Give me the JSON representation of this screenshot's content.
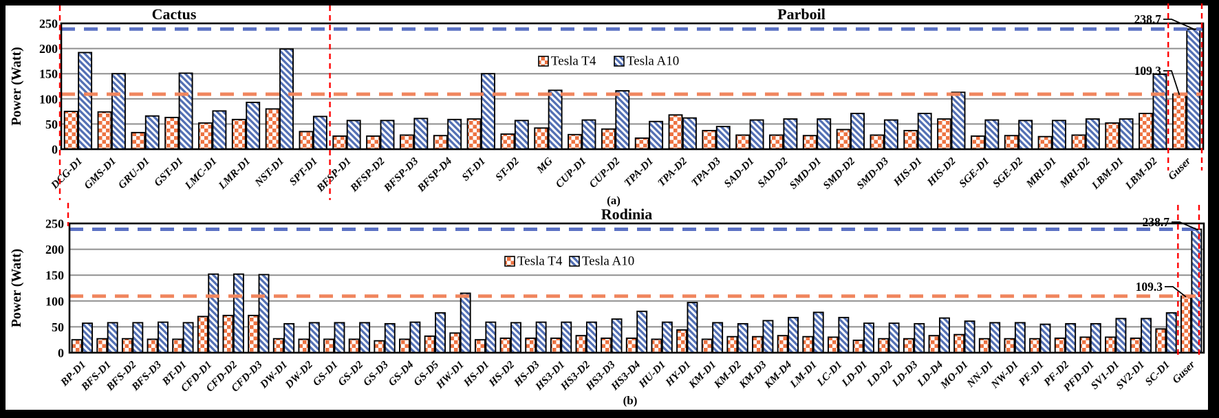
{
  "figure": {
    "ylabel": "Power (Watt)",
    "legend": [
      "Tesla T4",
      "Tesla A10"
    ],
    "colors": {
      "t4_fill": "#EE7342",
      "a10_fill": "#5370B4",
      "t4_ref_line": "#F0865E",
      "a10_ref_line": "#5C72C4",
      "divider_line": "#FF0000",
      "gridline": "#8F8F8F",
      "bar_outline": "#000000"
    }
  },
  "chart_data": [
    {
      "type": "bar",
      "panel_label": "(a)",
      "title_sections": [
        "Cactus",
        "Parboil"
      ],
      "ylabel": "Power (Watt)",
      "ylim": [
        0,
        250
      ],
      "yticks": [
        0,
        50,
        100,
        150,
        200,
        250
      ],
      "grid": true,
      "legend": [
        "Tesla T4",
        "Tesla A10"
      ],
      "legend_position": "inside-top-center",
      "categories": [
        "DCG-D1",
        "GMS-D1",
        "GRU-D1",
        "GST-D1",
        "LMC-D1",
        "LMR-D1",
        "NST-D1",
        "SPT-D1",
        "BFSP-D1",
        "BFSP-D2",
        "BFSP-D3",
        "BFSP-D4",
        "ST-D1",
        "ST-D2",
        "MG",
        "CUP-D1",
        "CUP-D2",
        "TPA-D1",
        "TPA-D2",
        "TPA-D3",
        "SAD-D1",
        "SAD-D2",
        "SMD-D1",
        "SMD-D2",
        "SMD-D3",
        "HIS-D1",
        "HIS-D2",
        "SGE-D1",
        "SGE-D2",
        "MRI-D1",
        "MRI-D2",
        "LBM-D1",
        "LBM-D2",
        "Guser"
      ],
      "series": [
        {
          "name": "Tesla T4",
          "values": [
            75,
            74,
            33,
            63,
            52,
            59,
            80,
            35,
            26,
            26,
            28,
            27,
            60,
            30,
            42,
            29,
            40,
            22,
            68,
            37,
            28,
            28,
            27,
            39,
            28,
            37,
            60,
            26,
            27,
            25,
            28,
            52,
            71,
            109.3
          ]
        },
        {
          "name": "Tesla A10",
          "values": [
            192,
            150,
            66,
            151,
            76,
            93,
            199,
            65,
            57,
            57,
            61,
            59,
            150,
            57,
            117,
            58,
            116,
            55,
            62,
            45,
            58,
            60,
            60,
            71,
            58,
            71,
            113,
            58,
            57,
            57,
            60,
            60,
            149,
            238.7
          ]
        }
      ],
      "ref_lines": [
        {
          "value": 238.7,
          "series": "Tesla A10"
        },
        {
          "value": 109.3,
          "series": "Tesla T4"
        }
      ],
      "annotations": [
        {
          "text": "238.7",
          "category": "Guser",
          "series": "Tesla A10"
        },
        {
          "text": "109.3",
          "category": "Guser",
          "series": "Tesla T4"
        }
      ],
      "suite_divider_boundaries": [
        0,
        8,
        33,
        34
      ]
    },
    {
      "type": "bar",
      "panel_label": "(b)",
      "title_sections": [
        "Rodinia"
      ],
      "ylabel": "Power (Watt)",
      "ylim": [
        0,
        250
      ],
      "yticks": [
        0,
        50,
        100,
        150,
        200,
        250
      ],
      "grid": true,
      "legend": [
        "Tesla T4",
        "Tesla A10"
      ],
      "legend_position": "inside-top-center",
      "categories": [
        "BP-D1",
        "BFS-D1",
        "BFS-D2",
        "BFS-D3",
        "BT-D1",
        "CFD-D1",
        "CFD-D2",
        "CFD-D3",
        "DW-D1",
        "DW-D2",
        "GS-D1",
        "GS-D2",
        "GS-D3",
        "GS-D4",
        "GS-D5",
        "HW-D1",
        "HS-D1",
        "HS-D2",
        "HS-D3",
        "HS3-D1",
        "HS3-D2",
        "HS3-D3",
        "HS3-D4",
        "HU-D1",
        "HY-D1",
        "KM-D1",
        "KM-D2",
        "KM-D3",
        "KM-D4",
        "LM-D1",
        "LC-D1",
        "LD-D1",
        "LD-D2",
        "LD-D3",
        "LD-D4",
        "MO-D1",
        "NN-D1",
        "NW-D1",
        "PF-D1",
        "PF-D2",
        "PFD-D1",
        "SV1-D1",
        "SV2-D1",
        "SC-D1",
        "Guser"
      ],
      "series": [
        {
          "name": "Tesla T4",
          "values": [
            25,
            27,
            27,
            26,
            26,
            70,
            72,
            72,
            27,
            26,
            26,
            26,
            23,
            26,
            32,
            38,
            25,
            28,
            28,
            28,
            33,
            28,
            28,
            26,
            44,
            26,
            31,
            31,
            33,
            31,
            30,
            24,
            27,
            27,
            33,
            35,
            27,
            27,
            27,
            28,
            30,
            30,
            28,
            46,
            109.3
          ]
        },
        {
          "name": "Tesla A10",
          "values": [
            57,
            58,
            58,
            59,
            58,
            152,
            152,
            151,
            56,
            58,
            58,
            58,
            56,
            59,
            77,
            115,
            59,
            58,
            59,
            59,
            59,
            65,
            80,
            59,
            97,
            58,
            56,
            62,
            68,
            78,
            68,
            57,
            57,
            56,
            67,
            61,
            58,
            58,
            55,
            56,
            56,
            66,
            66,
            77,
            238.7
          ]
        }
      ],
      "ref_lines": [
        {
          "value": 238.7,
          "series": "Tesla A10"
        },
        {
          "value": 109.3,
          "series": "Tesla T4"
        }
      ],
      "annotations": [
        {
          "text": "238.7",
          "category": "Guser",
          "series": "Tesla A10"
        },
        {
          "text": "109.3",
          "category": "Guser",
          "series": "Tesla T4"
        }
      ],
      "suite_divider_boundaries": [
        0,
        44,
        45
      ]
    }
  ]
}
